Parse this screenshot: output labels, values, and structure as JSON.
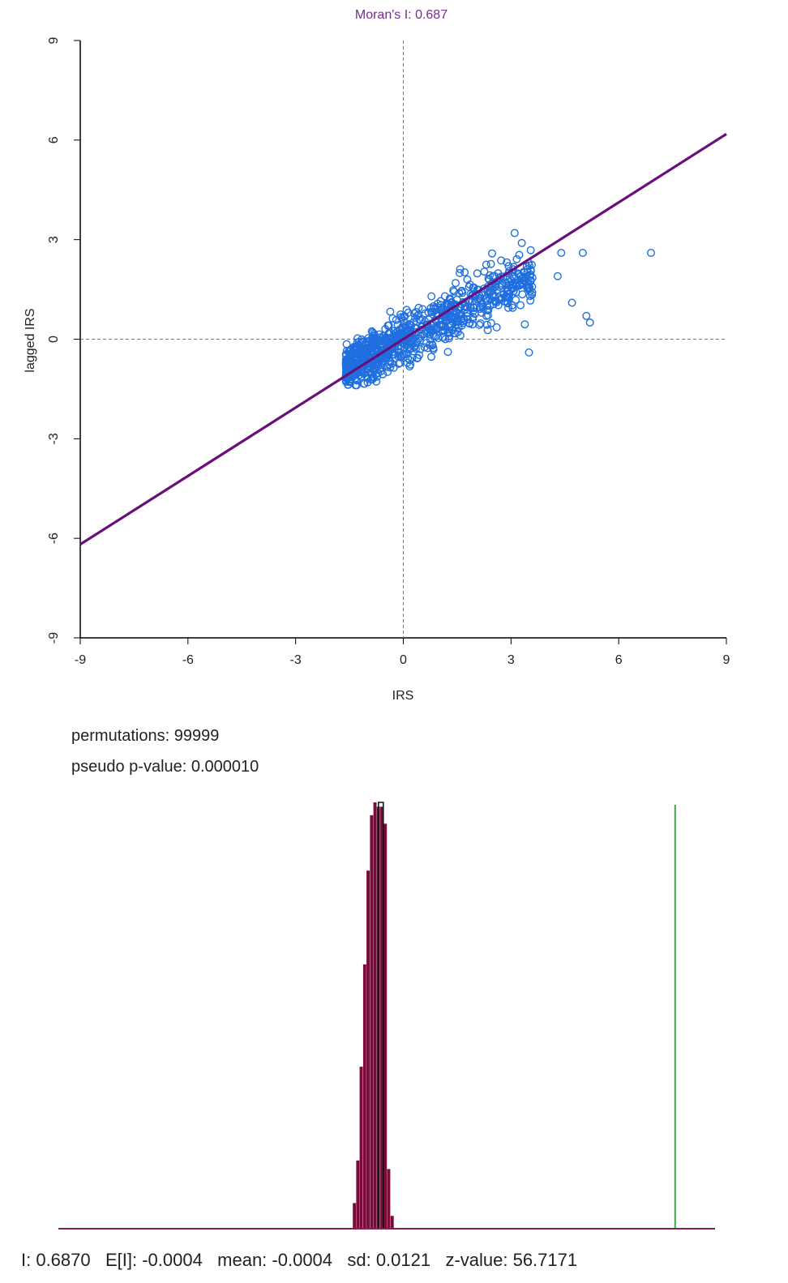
{
  "chart_data": [
    {
      "type": "scatter",
      "title": "Moran's I: 0.687",
      "xlabel": "IRS",
      "ylabel": "lagged IRS",
      "xlim": [
        -9,
        9
      ],
      "ylim": [
        -9,
        9
      ],
      "xticks": [
        "-9",
        "-6",
        "-3",
        "0",
        "3",
        "6",
        "9"
      ],
      "yticks": [
        "-9",
        "-6",
        "-3",
        "0",
        "3",
        "6",
        "9"
      ],
      "reference_lines": {
        "x": 0,
        "y": 0,
        "style": "dashed"
      },
      "fit_line": {
        "slope": 0.687,
        "intercept": 0,
        "color": "#6a0f7a"
      },
      "colors": {
        "points": "#1f6fe0",
        "title": "#7a2a8f",
        "fit": "#6a0f7a"
      },
      "points_note_x": [],
      "point_count": 900,
      "cloud": {
        "x_min": -1.6,
        "x_max": 3.6,
        "outliers": [
          [
            6.9,
            2.6
          ],
          [
            5.0,
            2.6
          ],
          [
            4.7,
            1.1
          ],
          [
            5.1,
            0.7
          ],
          [
            5.2,
            0.5
          ],
          [
            4.4,
            2.6
          ],
          [
            4.3,
            1.9
          ],
          [
            3.5,
            -0.4
          ],
          [
            3.1,
            3.2
          ],
          [
            3.3,
            2.9
          ]
        ]
      }
    },
    {
      "type": "histogram",
      "permutations_label": "permutations: 99999",
      "pvalue_label": "pseudo p-value: 0.000010",
      "observed_I": 0.687,
      "mean": -0.0004,
      "sd": 0.0121,
      "xlim": [
        -0.75,
        0.78
      ],
      "colors": {
        "bars": "#7a0a3a",
        "baseline": "#8a1f4a",
        "observed": "#3aa84a",
        "expected": "#111111"
      },
      "bins": [
        {
          "x": -0.06,
          "v": 0.06
        },
        {
          "x": -0.052,
          "v": 0.16
        },
        {
          "x": -0.044,
          "v": 0.38
        },
        {
          "x": -0.036,
          "v": 0.62
        },
        {
          "x": -0.028,
          "v": 0.84
        },
        {
          "x": -0.02,
          "v": 0.97
        },
        {
          "x": -0.012,
          "v": 1.0
        },
        {
          "x": -0.004,
          "v": 0.99
        },
        {
          "x": 0.004,
          "v": 0.99
        },
        {
          "x": 0.012,
          "v": 0.95
        },
        {
          "x": 0.02,
          "v": 0.14
        },
        {
          "x": 0.028,
          "v": 0.03
        }
      ],
      "summary": "I: 0.6870   E[I]: -0.0004   mean: -0.0004   sd: 0.0121   z-value: 56.7171"
    }
  ]
}
